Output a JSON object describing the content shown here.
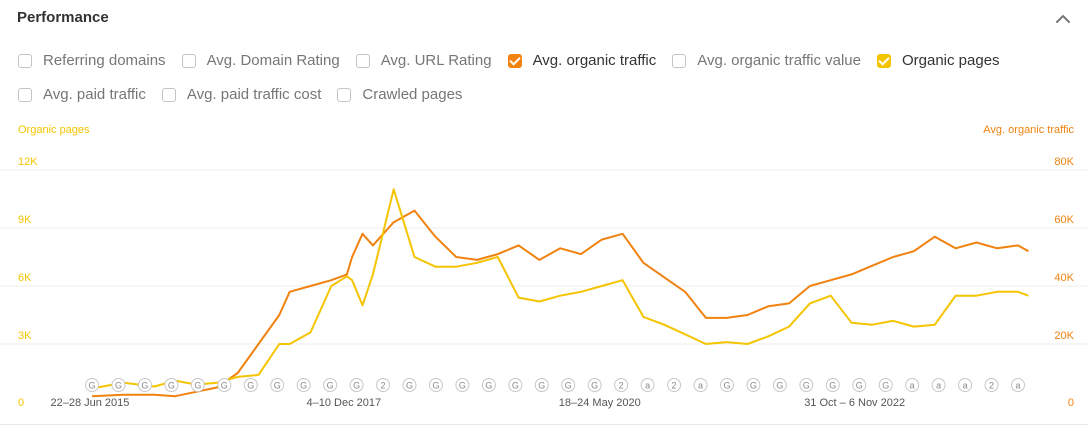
{
  "panel": {
    "title": "Performance"
  },
  "colors": {
    "organic_traffic": "#f0820f",
    "organic_pages": "#f5c400",
    "grid": "#eeeeee",
    "marker": "#c8c8c8"
  },
  "metrics": [
    {
      "label": "Referring domains",
      "checked": false
    },
    {
      "label": "Avg. Domain Rating",
      "checked": false
    },
    {
      "label": "Avg. URL Rating",
      "checked": false
    },
    {
      "label": "Avg. organic traffic",
      "checked": true,
      "color": "#f0820f"
    },
    {
      "label": "Avg. organic traffic value",
      "checked": false
    },
    {
      "label": "Organic pages",
      "checked": true,
      "color": "#f5c400"
    },
    {
      "label": "Avg. paid traffic",
      "checked": false
    },
    {
      "label": "Avg. paid traffic cost",
      "checked": false
    },
    {
      "label": "Crawled pages",
      "checked": false
    }
  ],
  "chart_data": {
    "type": "line",
    "left_axis": {
      "label": "Organic pages",
      "ticks": [
        "0",
        "3K",
        "6K",
        "9K",
        "12K"
      ],
      "range": [
        0,
        12000
      ]
    },
    "right_axis": {
      "label": "Avg. organic traffic",
      "ticks": [
        "0",
        "20K",
        "40K",
        "60K",
        "80K"
      ],
      "range": [
        0,
        80000
      ]
    },
    "x_labels": [
      "22–28 Jun 2015",
      "4–10 Dec 2017",
      "18–24 May 2020",
      "31 Oct – 6 Nov 2022"
    ],
    "x": [
      2015.5,
      2015.8,
      2016.1,
      2016.3,
      2016.5,
      2016.7,
      2016.9,
      2017.1,
      2017.3,
      2017.4,
      2017.6,
      2017.8,
      2017.95,
      2018.0,
      2018.1,
      2018.2,
      2018.4,
      2018.6,
      2018.8,
      2019.0,
      2019.2,
      2019.4,
      2019.6,
      2019.8,
      2020.0,
      2020.2,
      2020.4,
      2020.6,
      2020.8,
      2021.0,
      2021.2,
      2021.4,
      2021.6,
      2021.8,
      2022.0,
      2022.2,
      2022.4,
      2022.6,
      2022.8,
      2023.0,
      2023.2,
      2023.4,
      2023.6,
      2023.8,
      2024.0,
      2024.2,
      2024.4,
      2024.5
    ],
    "series": [
      {
        "name": "Avg. organic traffic",
        "axis": "right",
        "color": "#f0820f",
        "values": [
          2000,
          2500,
          2500,
          2000,
          3500,
          5000,
          10000,
          20000,
          30000,
          38000,
          40000,
          42000,
          44000,
          50000,
          58000,
          54000,
          62000,
          66000,
          57000,
          50000,
          49000,
          51000,
          54000,
          49000,
          53000,
          51000,
          56000,
          58000,
          48000,
          43000,
          38000,
          29000,
          29000,
          30000,
          33000,
          34000,
          40000,
          42000,
          44000,
          47000,
          50000,
          52000,
          57000,
          53000,
          55000,
          53000,
          54000,
          52000
        ]
      },
      {
        "name": "Organic pages",
        "axis": "left",
        "color": "#f5c400",
        "values": [
          700,
          1000,
          800,
          1100,
          900,
          1000,
          1300,
          1400,
          3000,
          3000,
          3600,
          6000,
          6500,
          6300,
          5000,
          6600,
          11000,
          7500,
          7000,
          7000,
          7200,
          7500,
          5400,
          5200,
          5500,
          5700,
          6000,
          6300,
          4400,
          4000,
          3500,
          3000,
          3100,
          3000,
          3400,
          3900,
          5100,
          5500,
          4100,
          4000,
          4200,
          3900,
          4000,
          5500,
          5500,
          5700,
          5700,
          5500
        ]
      }
    ],
    "annotation_labels": [
      "G",
      "G",
      "G",
      "G",
      "G",
      "G",
      "G",
      "G",
      "G",
      "G",
      "G",
      "2",
      "G",
      "G",
      "G",
      "G",
      "G",
      "G",
      "G",
      "G",
      "2",
      "a",
      "2",
      "a",
      "G",
      "G",
      "G",
      "G",
      "G",
      "G",
      "G",
      "a",
      "a",
      "a",
      "2",
      "a"
    ],
    "grid": true
  }
}
